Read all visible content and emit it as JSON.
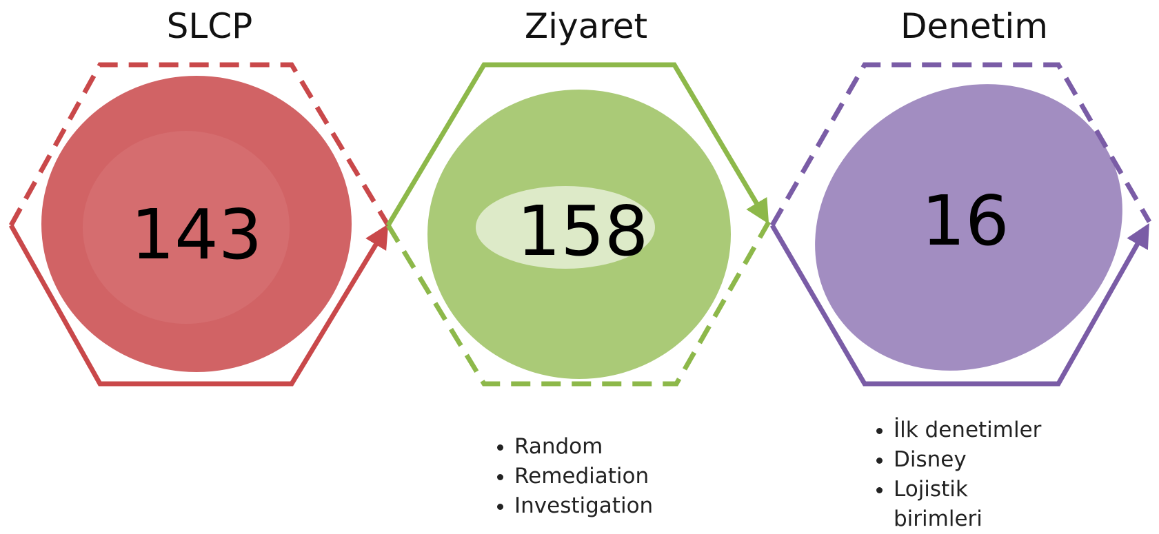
{
  "nodes": [
    {
      "title": "SLCP",
      "value": 143
    },
    {
      "title": "Ziyaret",
      "value": 158,
      "bullets": [
        "Random",
        "Remediation",
        "Investigation"
      ]
    },
    {
      "title": "Denetim",
      "value": 16,
      "bullets": [
        "İlk denetimler",
        "Disney",
        "Lojistik birimleri"
      ]
    }
  ]
}
